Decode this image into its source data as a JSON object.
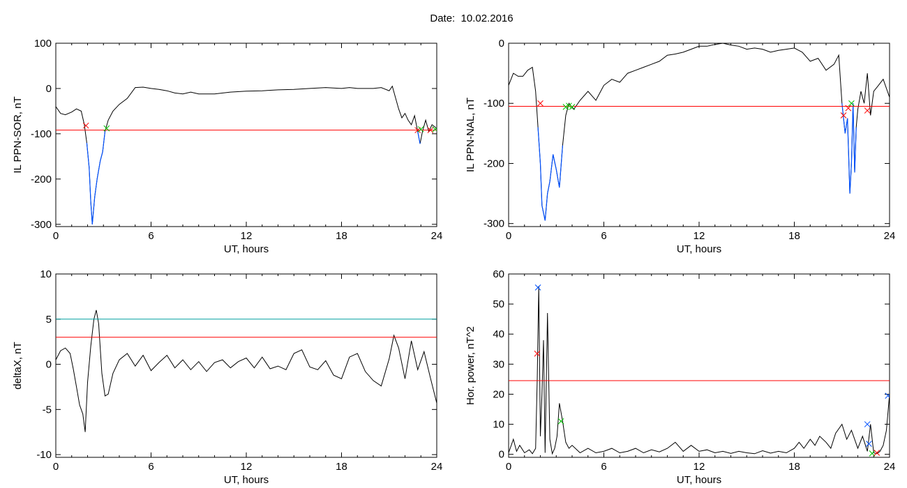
{
  "title": "Date:  10.02.2016",
  "colors": {
    "trace": "#000000",
    "threshold": "#ff0000",
    "threshold_alt": "#00a0a0",
    "highlight": "#0050ff",
    "marker_red": "#ff0000",
    "marker_green": "#00c000",
    "marker_blue": "#0050ff"
  },
  "chart_data": [
    {
      "id": "sor",
      "type": "line",
      "xlabel": "UT, hours",
      "ylabel": "IL PPN-SOR, nT",
      "xlim": [
        0,
        24
      ],
      "ylim": [
        -305,
        100
      ],
      "xticks": [
        0,
        6,
        12,
        18,
        24
      ],
      "yticks": [
        -300,
        -200,
        -100,
        0,
        100
      ],
      "thresholds": [
        {
          "y": -92,
          "color": "red"
        }
      ],
      "series": [
        {
          "x": [
            0,
            0.3,
            0.6,
            1,
            1.3,
            1.6,
            1.8,
            1.95,
            2.1,
            2.2,
            2.3,
            2.45,
            2.6,
            2.8,
            2.95,
            3.1,
            3.3,
            3.6,
            4,
            4.5,
            5,
            5.5,
            6,
            6.5,
            7,
            7.5,
            8,
            8.5,
            9,
            10,
            11,
            12,
            13,
            14,
            15,
            16,
            17,
            18,
            18.5,
            19,
            19.5,
            20,
            20.5,
            21,
            21.2,
            21.4,
            21.6,
            21.8,
            22,
            22.2,
            22.4,
            22.6,
            22.8,
            22.95,
            23.1,
            23.3,
            23.5,
            23.7,
            24
          ],
          "y": [
            -40,
            -55,
            -58,
            -52,
            -45,
            -50,
            -80,
            -120,
            -175,
            -250,
            -300,
            -240,
            -200,
            -160,
            -140,
            -95,
            -70,
            -50,
            -35,
            -22,
            2,
            3,
            0,
            -2,
            -5,
            -10,
            -12,
            -8,
            -12,
            -12,
            -8,
            -6,
            -5,
            -3,
            -2,
            0,
            2,
            0,
            2,
            0,
            0,
            0,
            2,
            -5,
            5,
            -20,
            -45,
            -65,
            -55,
            -70,
            -80,
            -60,
            -95,
            -122,
            -95,
            -70,
            -95,
            -80,
            -88
          ]
        }
      ],
      "markers": [
        {
          "x": 1.9,
          "y": -82,
          "color": "red"
        },
        {
          "x": 3.2,
          "y": -88,
          "color": "green"
        },
        {
          "x": 22.8,
          "y": -92,
          "color": "red"
        },
        {
          "x": 23.0,
          "y": -90,
          "color": "green"
        },
        {
          "x": 23.6,
          "y": -92,
          "color": "red"
        },
        {
          "x": 23.9,
          "y": -90,
          "color": "green"
        }
      ],
      "highlight_ranges": [
        [
          1.9,
          3.2
        ],
        [
          22.8,
          23.0
        ]
      ]
    },
    {
      "id": "nal",
      "type": "line",
      "xlabel": "UT, hours",
      "ylabel": "IL PPN-NAL, nT",
      "xlim": [
        0,
        24
      ],
      "ylim": [
        -305,
        0
      ],
      "xticks": [
        0,
        6,
        12,
        18,
        24
      ],
      "yticks": [
        -300,
        -200,
        -100,
        0
      ],
      "thresholds": [
        {
          "y": -105,
          "color": "red"
        }
      ],
      "series": [
        {
          "x": [
            0,
            0.3,
            0.6,
            0.9,
            1.2,
            1.5,
            1.7,
            1.85,
            2.0,
            2.1,
            2.3,
            2.45,
            2.6,
            2.8,
            3.0,
            3.2,
            3.4,
            3.6,
            3.8,
            4.1,
            4.5,
            5,
            5.5,
            6,
            6.5,
            7,
            7.5,
            8,
            8.5,
            9,
            9.5,
            10,
            10.5,
            11,
            11.5,
            12,
            12.5,
            13,
            13.5,
            14,
            14.5,
            15,
            15.5,
            16,
            16.5,
            17,
            17.5,
            18,
            18.5,
            19,
            19.5,
            20,
            20.5,
            20.8,
            21.0,
            21.2,
            21.35,
            21.5,
            21.6,
            21.7,
            21.8,
            21.9,
            22.0,
            22.2,
            22.4,
            22.6,
            22.8,
            23,
            23.3,
            23.6,
            24
          ],
          "y": [
            -70,
            -50,
            -55,
            -55,
            -45,
            -40,
            -80,
            -140,
            -200,
            -270,
            -295,
            -250,
            -230,
            -185,
            -210,
            -240,
            -170,
            -120,
            -100,
            -110,
            -95,
            -80,
            -95,
            -70,
            -60,
            -65,
            -50,
            -45,
            -40,
            -35,
            -30,
            -20,
            -18,
            -15,
            -10,
            -5,
            -5,
            -2,
            0,
            -3,
            -5,
            -10,
            -8,
            -10,
            -15,
            -12,
            -10,
            -8,
            -15,
            -30,
            -25,
            -45,
            -35,
            -20,
            -100,
            -150,
            -125,
            -250,
            -200,
            -100,
            -215,
            -140,
            -110,
            -80,
            -100,
            -50,
            -120,
            -80,
            -70,
            -60,
            -90
          ]
        }
      ],
      "markers": [
        {
          "x": 2.0,
          "y": -100,
          "color": "red"
        },
        {
          "x": 3.6,
          "y": -106,
          "color": "green"
        },
        {
          "x": 3.8,
          "y": -104,
          "color": "green"
        },
        {
          "x": 4.0,
          "y": -106,
          "color": "green"
        },
        {
          "x": 21.1,
          "y": -120,
          "color": "red"
        },
        {
          "x": 21.4,
          "y": -108,
          "color": "red"
        },
        {
          "x": 21.6,
          "y": -100,
          "color": "green"
        },
        {
          "x": 22.6,
          "y": -112,
          "color": "red"
        }
      ],
      "highlight_ranges": [
        [
          1.85,
          3.4
        ],
        [
          21.0,
          21.9
        ]
      ]
    },
    {
      "id": "deltax",
      "type": "line",
      "xlabel": "UT, hours",
      "ylabel": "deltaX, nT",
      "xlim": [
        0,
        24
      ],
      "ylim": [
        -10.3,
        10
      ],
      "xticks": [
        0,
        6,
        12,
        18,
        24
      ],
      "yticks": [
        -10,
        -5,
        0,
        5,
        10
      ],
      "thresholds": [
        {
          "y": 5,
          "color": "teal"
        },
        {
          "y": 3,
          "color": "red"
        }
      ],
      "series": [
        {
          "x": [
            0,
            0.3,
            0.6,
            0.9,
            1.1,
            1.3,
            1.5,
            1.7,
            1.85,
            2.0,
            2.2,
            2.4,
            2.55,
            2.7,
            2.9,
            3.1,
            3.3,
            3.6,
            4,
            4.5,
            5,
            5.5,
            6,
            6.5,
            7,
            7.5,
            8,
            8.5,
            9,
            9.5,
            10,
            10.5,
            11,
            11.5,
            12,
            12.5,
            13,
            13.5,
            14,
            14.5,
            15,
            15.5,
            16,
            16.5,
            17,
            17.5,
            18,
            18.5,
            19,
            19.5,
            20,
            20.5,
            21,
            21.3,
            21.6,
            22,
            22.4,
            22.8,
            23.2,
            23.6,
            24
          ],
          "y": [
            0.5,
            1.5,
            1.8,
            1.2,
            -0.5,
            -2.5,
            -4.5,
            -5.5,
            -7.5,
            -2,
            2,
            5,
            6,
            4.5,
            -1,
            -3.5,
            -3.3,
            -1,
            0.5,
            1.2,
            -0.2,
            1.0,
            -0.7,
            0.2,
            1.0,
            -0.4,
            0.5,
            -0.6,
            0.3,
            -0.8,
            0.2,
            0.5,
            -0.4,
            0.3,
            0.7,
            -0.4,
            0.8,
            -0.5,
            -0.2,
            -0.6,
            1.2,
            1.6,
            -0.3,
            -0.6,
            0.4,
            -1.2,
            -1.6,
            0.8,
            1.2,
            -0.8,
            -1.8,
            -2.4,
            0.6,
            3.2,
            1.8,
            -1.6,
            2.6,
            -0.6,
            1.4,
            -1.5,
            -4.3
          ]
        }
      ],
      "markers": [],
      "highlight_ranges": []
    },
    {
      "id": "power",
      "type": "line",
      "xlabel": "UT, hours",
      "ylabel": "Hor. power, nT^2",
      "xlim": [
        0,
        24
      ],
      "ylim": [
        -1,
        60
      ],
      "xticks": [
        0,
        6,
        12,
        18,
        24
      ],
      "yticks": [
        0,
        10,
        20,
        30,
        40,
        50,
        60
      ],
      "thresholds": [
        {
          "y": 24.5,
          "color": "red"
        }
      ],
      "series": [
        {
          "x": [
            0,
            0.3,
            0.5,
            0.7,
            1.0,
            1.3,
            1.5,
            1.7,
            1.8,
            1.9,
            2.0,
            2.1,
            2.2,
            2.3,
            2.45,
            2.6,
            2.75,
            2.9,
            3.05,
            3.2,
            3.4,
            3.6,
            3.8,
            4,
            4.5,
            5,
            5.5,
            6,
            6.5,
            7,
            7.5,
            8,
            8.5,
            9,
            9.5,
            10,
            10.5,
            11,
            11.5,
            12,
            12.5,
            13,
            13.5,
            14,
            14.5,
            15,
            15.5,
            16,
            16.5,
            17,
            17.5,
            18,
            18.3,
            18.6,
            19,
            19.3,
            19.6,
            20,
            20.3,
            20.6,
            21,
            21.3,
            21.6,
            22,
            22.3,
            22.6,
            22.8,
            23,
            23.2,
            23.4,
            23.6,
            23.8,
            24
          ],
          "y": [
            0.5,
            5,
            1,
            3,
            0.5,
            1.5,
            0.2,
            2,
            25,
            56,
            6,
            20,
            38,
            0.5,
            47,
            5,
            0.2,
            2,
            6,
            17,
            11,
            4,
            2,
            3,
            0.5,
            2,
            0.5,
            1,
            2,
            0.5,
            1,
            2,
            0.5,
            1.5,
            0.8,
            2,
            4,
            1,
            3,
            1,
            1.5,
            0.5,
            1,
            0.3,
            1,
            0.5,
            0.2,
            1.2,
            0.4,
            1,
            0.5,
            2,
            4,
            2,
            5,
            3,
            6,
            4,
            2,
            7,
            10,
            5,
            8,
            2,
            6,
            1,
            10,
            0.5,
            0.2,
            1,
            3,
            8,
            20
          ]
        }
      ],
      "markers": [
        {
          "x": 1.8,
          "y": 33.5,
          "color": "red"
        },
        {
          "x": 1.85,
          "y": 55.5,
          "color": "blue"
        },
        {
          "x": 3.3,
          "y": 11,
          "color": "green"
        },
        {
          "x": 22.6,
          "y": 10,
          "color": "blue"
        },
        {
          "x": 22.7,
          "y": 3.5,
          "color": "blue"
        },
        {
          "x": 22.9,
          "y": 0.3,
          "color": "green"
        },
        {
          "x": 23.2,
          "y": 0.5,
          "color": "red"
        },
        {
          "x": 23.9,
          "y": 19.5,
          "color": "blue"
        }
      ],
      "highlight_ranges": []
    }
  ]
}
